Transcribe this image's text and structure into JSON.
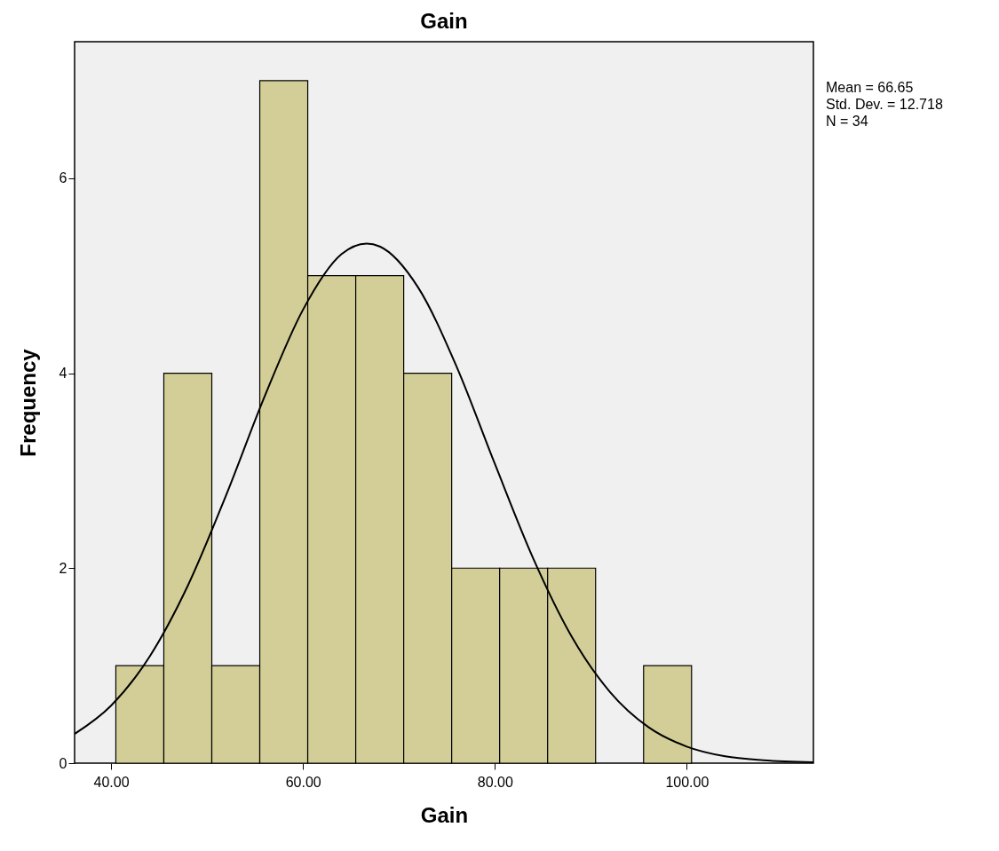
{
  "chart_data": {
    "type": "histogram",
    "title": "Gain",
    "xlabel": "Gain",
    "ylabel": "Frequency",
    "bins": [
      40.5,
      45.5,
      50.5,
      55.5,
      60.5,
      65.5,
      70.5,
      75.5,
      80.5,
      85.5,
      90.5,
      95.5,
      100.5
    ],
    "values": [
      1,
      4,
      1,
      7,
      5,
      5,
      4,
      2,
      2,
      2,
      0,
      1
    ],
    "color": "#d3ce97",
    "series": [
      {
        "type": "line",
        "color": "#000000",
        "x": [
          36.2,
          40,
          44,
          48,
          52,
          56,
          60,
          64,
          66.65,
          68,
          72,
          76,
          80,
          84,
          88,
          92,
          96,
          100,
          104,
          108,
          113.2
        ],
        "values": [
          0.3,
          0.59,
          1.09,
          1.82,
          2.75,
          3.76,
          4.65,
          5.22,
          5.33,
          5.3,
          4.88,
          4.07,
          3.07,
          2.1,
          1.3,
          0.73,
          0.37,
          0.17,
          0.07,
          0.03,
          0.01
        ]
      }
    ],
    "xlim": [
      36.2,
      113.2
    ],
    "ylim": [
      0,
      7.4
    ],
    "xticks": [
      {
        "value": 40,
        "label": "40.00"
      },
      {
        "value": 60,
        "label": "60.00"
      },
      {
        "value": 80,
        "label": "80.00"
      },
      {
        "value": 100,
        "label": "100.00"
      }
    ],
    "yticks": [
      0,
      2,
      4,
      6
    ],
    "grid": false,
    "annotations": [
      "Mean = 66.65",
      "Std. Dev. = 12.718",
      "N = 34"
    ]
  }
}
